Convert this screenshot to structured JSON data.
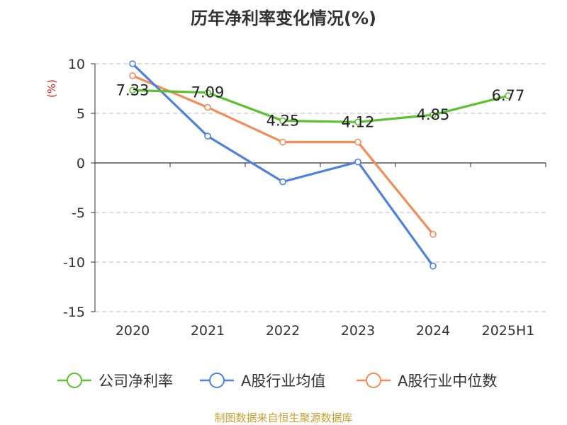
{
  "chart_data": {
    "type": "line",
    "title": "历年净利率变化情况(%)",
    "xlabel": "",
    "ylabel": "(%)",
    "categories": [
      "2020",
      "2021",
      "2022",
      "2023",
      "2024",
      "2025H1"
    ],
    "ylim": [
      -15,
      10
    ],
    "yticks": [
      10,
      5,
      0,
      -5,
      -10,
      -15
    ],
    "ytick_labels": [
      "10",
      "5",
      "0",
      "-5",
      "-10",
      "-15"
    ],
    "grid": true,
    "legend_position": "bottom",
    "series": [
      {
        "name": "公司净利率",
        "color": "#5bc12e",
        "values": [
          7.33,
          7.09,
          4.25,
          4.12,
          4.85,
          6.77
        ],
        "labels": [
          "7.33",
          "7.09",
          "4.25",
          "4.12",
          "4.85",
          "6.77"
        ]
      },
      {
        "name": "A股行业均值",
        "color": "#4e81de",
        "values": [
          10.0,
          2.7,
          -1.9,
          0.1,
          -10.4,
          null
        ]
      },
      {
        "name": "A股行业中位数",
        "color": "#f48c58",
        "values": [
          8.8,
          5.6,
          2.1,
          2.1,
          -7.2,
          null
        ]
      }
    ]
  },
  "footer": {
    "source": "制图数据来自恒生聚源数据库"
  }
}
